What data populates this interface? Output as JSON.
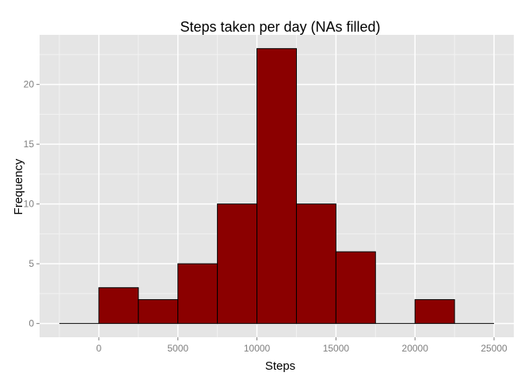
{
  "chart_data": {
    "type": "bar",
    "title": "Steps taken per day (NAs filled)",
    "xlabel": "Steps",
    "ylabel": "Frequency",
    "bins": [
      {
        "from": -2500,
        "to": 0,
        "count": 0
      },
      {
        "from": 0,
        "to": 2500,
        "count": 3
      },
      {
        "from": 2500,
        "to": 5000,
        "count": 2
      },
      {
        "from": 5000,
        "to": 7500,
        "count": 5
      },
      {
        "from": 7500,
        "to": 10000,
        "count": 10
      },
      {
        "from": 10000,
        "to": 12500,
        "count": 23
      },
      {
        "from": 12500,
        "to": 15000,
        "count": 10
      },
      {
        "from": 15000,
        "to": 17500,
        "count": 6
      },
      {
        "from": 17500,
        "to": 20000,
        "count": 0
      },
      {
        "from": 20000,
        "to": 22500,
        "count": 2
      },
      {
        "from": 22500,
        "to": 25000,
        "count": 0
      }
    ],
    "xlim": [
      -3750,
      26250
    ],
    "ylim": [
      -1.15,
      24.15
    ],
    "xticks": [
      0,
      5000,
      10000,
      15000,
      20000,
      25000
    ],
    "xtick_labels": [
      "0",
      "5000",
      "10000",
      "15000",
      "20000",
      "25000"
    ],
    "yticks": [
      0,
      5,
      10,
      15,
      20
    ],
    "ytick_labels": [
      "0",
      "5",
      "10",
      "15",
      "20"
    ],
    "grid": true,
    "legend": "none",
    "colors": {
      "bar_fill": "#8b0000",
      "bar_outline": "#000000",
      "panel_background": "#e5e5e5",
      "grid_major": "#ffffff",
      "grid_minor": "#f2f2f2",
      "tick_text": "#7f7f7f"
    }
  }
}
